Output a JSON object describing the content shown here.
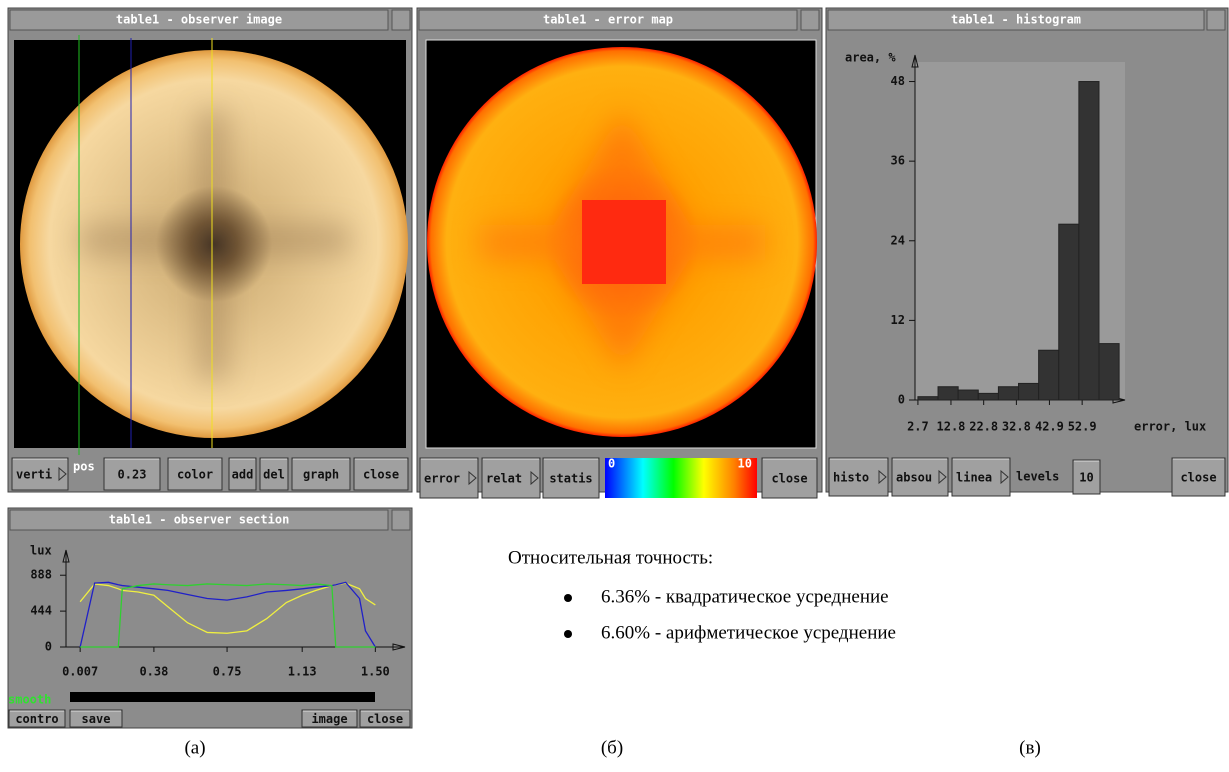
{
  "windows": {
    "observer_image": {
      "title": "table1 - observer image",
      "pos_label": "pos",
      "buttons": [
        "verti",
        "0.23",
        "color",
        "add",
        "del",
        "graph",
        "close"
      ]
    },
    "error_map": {
      "title": "table1 - error map",
      "buttons": [
        "error",
        "relat",
        "statis",
        "close"
      ],
      "colorbar_labels": [
        "0",
        "10"
      ]
    },
    "histogram": {
      "title": "table1 - histogram",
      "levels_label": "levels",
      "buttons": [
        "histo",
        "absou",
        "linea",
        "10",
        "close"
      ]
    },
    "observer_section": {
      "title": "table1 - observer section",
      "slider_label": "smooth",
      "buttons": [
        "contro",
        "save",
        "image",
        "close"
      ]
    }
  },
  "text": {
    "heading": "Относительная точность:",
    "bullets": [
      "6.36% - квадратическое усреднение",
      "6.60% - арифметическое усреднение"
    ]
  },
  "captions": [
    "(а)",
    "(б)",
    "(в)"
  ],
  "chart_data": [
    {
      "type": "histogram",
      "x_label": "error, lux",
      "y_label": "area, %",
      "color": "#333333",
      "bins": [
        2.7,
        8.85,
        15,
        21.15,
        27.3,
        33.45,
        39.6,
        45.75,
        51.9,
        58.05,
        64.2
      ],
      "values": [
        0.5,
        2,
        1.5,
        1,
        2,
        2.5,
        7.5,
        26.5,
        48,
        8.5
      ],
      "xlim": [
        -4,
        66
      ],
      "ylim": [
        0,
        52
      ],
      "xticks": [
        2.7,
        12.8,
        22.8,
        32.8,
        42.9,
        52.9
      ],
      "yticks": [
        0,
        12,
        24,
        36,
        48
      ]
    },
    {
      "type": "line",
      "y_label": "lux",
      "x": [
        0.007,
        0.08,
        0.15,
        0.2,
        0.22,
        0.3,
        0.38,
        0.45,
        0.55,
        0.65,
        0.75,
        0.85,
        0.95,
        1.05,
        1.13,
        1.2,
        1.28,
        1.3,
        1.35,
        1.42,
        1.45,
        1.5
      ],
      "series": [
        {
          "color": "#f0f040",
          "values": [
            560,
            780,
            760,
            720,
            700,
            680,
            640,
            500,
            300,
            180,
            170,
            200,
            350,
            550,
            640,
            700,
            760,
            770,
            790,
            720,
            600,
            520
          ]
        },
        {
          "color": "#2020c8",
          "values": [
            0,
            790,
            800,
            770,
            760,
            740,
            720,
            700,
            650,
            600,
            580,
            620,
            680,
            700,
            720,
            740,
            760,
            770,
            800,
            600,
            200,
            0
          ]
        },
        {
          "color": "#30d030",
          "values": [
            0,
            0,
            0,
            0,
            720,
            760,
            780,
            770,
            760,
            780,
            770,
            760,
            780,
            770,
            760,
            780,
            760,
            0,
            0,
            0,
            0,
            0
          ]
        }
      ],
      "xlim": [
        -0.1,
        1.65
      ],
      "ylim": [
        0,
        1200
      ],
      "xticks": [
        0.007,
        0.38,
        0.75,
        1.13,
        {
          "value": 1.5,
          "label": "1.50"
        }
      ],
      "yticks": [
        0,
        444,
        888
      ]
    }
  ]
}
